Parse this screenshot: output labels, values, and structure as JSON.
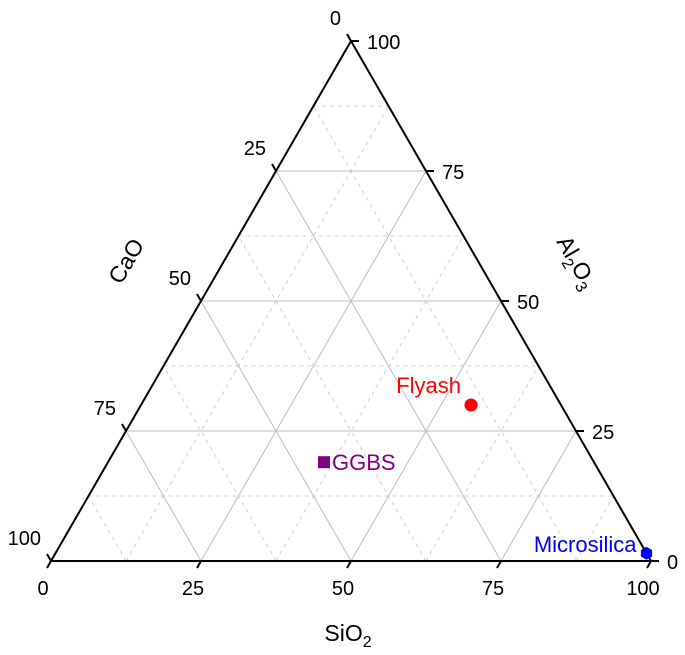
{
  "chart_data": {
    "type": "scatter",
    "subtype": "ternary",
    "axes": {
      "bottom": {
        "label": "SiO",
        "sub": "2",
        "ticks": [
          "0",
          "25",
          "50",
          "75",
          "100"
        ]
      },
      "left": {
        "label": "CaO",
        "ticks": [
          "0",
          "25",
          "50",
          "75",
          "100"
        ]
      },
      "right": {
        "label_parts": [
          "Al",
          "2",
          "O",
          "3"
        ],
        "ticks": [
          "0",
          "25",
          "50",
          "75",
          "100"
        ]
      }
    },
    "grid": {
      "major_step": 25,
      "minor_step": 12.5,
      "major_color": "#bdbdbd",
      "minor_color": "#cfcfcf"
    },
    "points": [
      {
        "name": "Flyash",
        "SiO2": 55,
        "CaO": 5,
        "Al2O3": 30,
        "color": "#ff0000",
        "marker": "circle"
      },
      {
        "name": "GGBS",
        "SiO2": 36,
        "CaO": 45,
        "Al2O3": 19,
        "color": "#800080",
        "marker": "square"
      },
      {
        "name": "Microsilica",
        "SiO2": 98.5,
        "CaO": 0,
        "Al2O3": 1.5,
        "color": "#0000ff",
        "marker": "hexagon"
      }
    ]
  }
}
